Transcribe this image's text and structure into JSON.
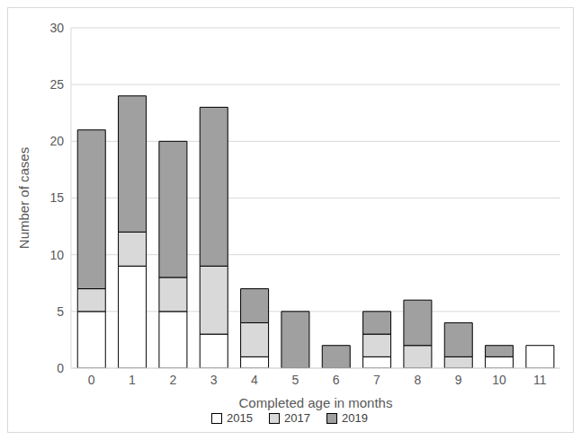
{
  "chart_data": {
    "type": "bar",
    "stacked": true,
    "grid": true,
    "legend": "bottom",
    "x_label": "Completed age in months",
    "y_label": "Number of cases",
    "categories": [
      "0",
      "1",
      "2",
      "3",
      "4",
      "5",
      "6",
      "7",
      "8",
      "9",
      "10",
      "11"
    ],
    "ylim": [
      0,
      30
    ],
    "yticks": [
      0,
      5,
      10,
      15,
      20,
      25,
      30
    ],
    "series": [
      {
        "name": "2015",
        "color": "#ffffff",
        "values": [
          5,
          9,
          5,
          3,
          1,
          0,
          0,
          1,
          0,
          0,
          1,
          2
        ]
      },
      {
        "name": "2017",
        "color": "#d9d9d9",
        "values": [
          2,
          3,
          3,
          6,
          3,
          0,
          0,
          2,
          2,
          1,
          0,
          0
        ]
      },
      {
        "name": "2019",
        "color": "#a0a0a0",
        "values": [
          14,
          12,
          12,
          14,
          3,
          5,
          2,
          2,
          4,
          3,
          1,
          0
        ]
      }
    ]
  }
}
